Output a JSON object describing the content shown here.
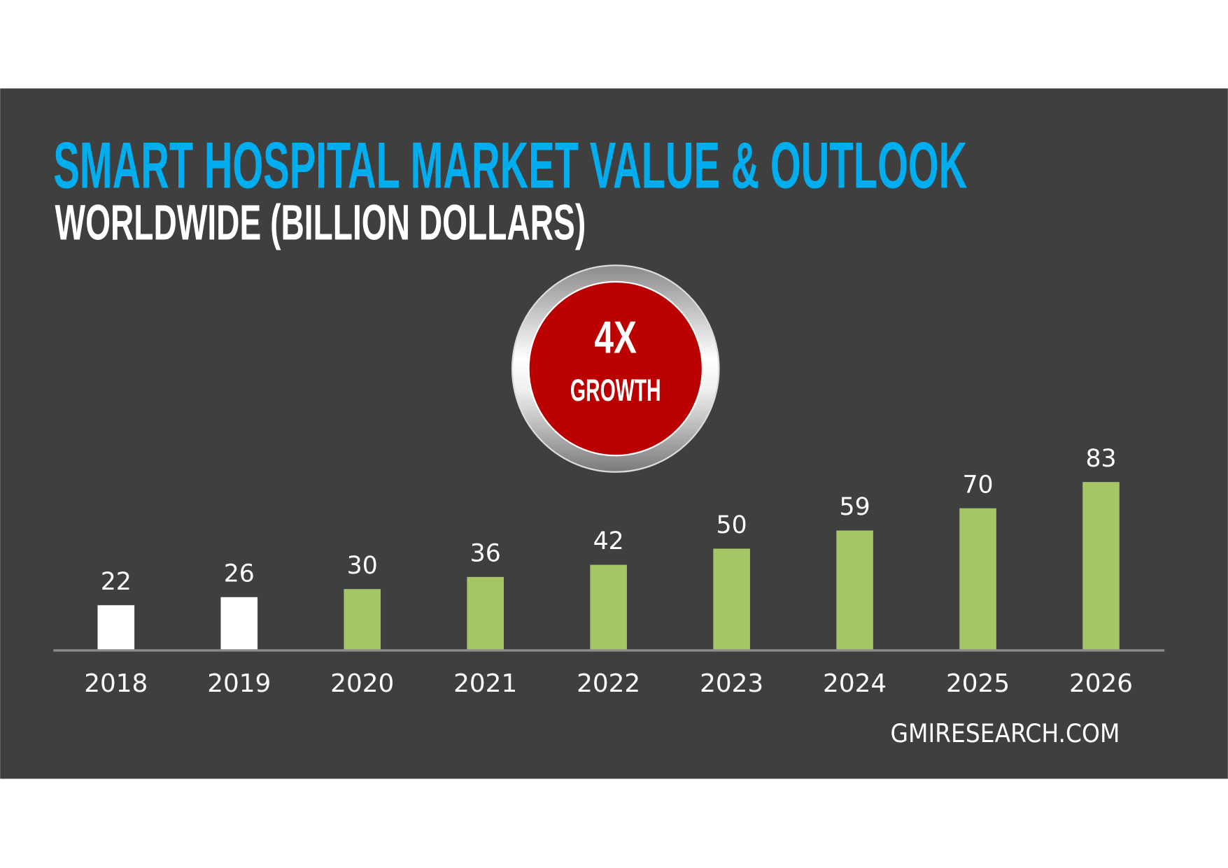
{
  "chart_data": {
    "type": "bar",
    "title": "SMART HOSPITAL MARKET VALUE & OUTLOOK",
    "subtitle": "WORLDWIDE (BILLION DOLLARS)",
    "xlabel": "",
    "ylabel": "",
    "categories": [
      "2018",
      "2019",
      "2020",
      "2021",
      "2022",
      "2023",
      "2024",
      "2025",
      "2026"
    ],
    "values": [
      22,
      26,
      30,
      36,
      42,
      50,
      59,
      70,
      83
    ],
    "data_labels": [
      "22",
      "26",
      "30",
      "36",
      "42",
      "50",
      "59",
      "70",
      "83"
    ],
    "bar_colors": [
      "#FFFFFF",
      "#FFFFFF",
      "#A6C564",
      "#A6C564",
      "#A6C564",
      "#A6C564",
      "#A6C564",
      "#A6C564",
      "#A6C564"
    ],
    "grid": false,
    "legend": "none"
  },
  "badge": {
    "value": "4X",
    "label": "GROWTH",
    "color": "#BB0000"
  },
  "source": "GMIRESEARCH.COM",
  "colors": {
    "background": "#3F3F3F",
    "title": "#00AEEF",
    "axis": "#8C8C8C"
  }
}
